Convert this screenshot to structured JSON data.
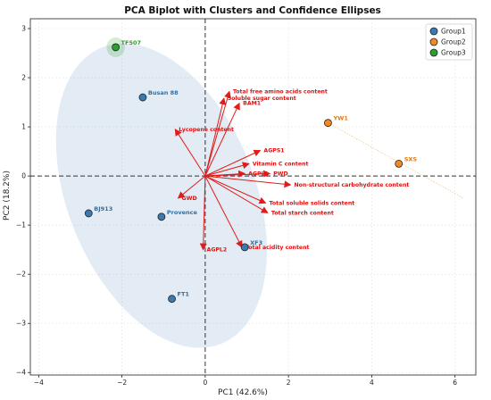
{
  "chart_data": {
    "type": "scatter",
    "title": "PCA Biplot with Clusters and Confidence Ellipses",
    "xlabel": "PC1 (42.6%)",
    "ylabel": "PC2 (18.2%)",
    "xlim": [
      -4.2,
      6.5
    ],
    "ylim": [
      -4.05,
      3.2
    ],
    "xticks": [
      -4,
      -2,
      0,
      2,
      4,
      6
    ],
    "yticks": [
      -4,
      -3,
      -2,
      -1,
      0,
      1,
      2,
      3
    ],
    "grid": true,
    "legend_position": "top-right",
    "groups": [
      {
        "name": "Group1",
        "color": "#3a7ab0",
        "label_color": "#2f6fa6"
      },
      {
        "name": "Group2",
        "color": "#f08a24",
        "label_color": "#e07a10"
      },
      {
        "name": "Group3",
        "color": "#2ca02c",
        "label_color": "#2ca02c"
      }
    ],
    "points": [
      {
        "label": "TF507",
        "x": -2.15,
        "y": 2.62,
        "group": 2
      },
      {
        "label": "Busan 88",
        "x": -1.5,
        "y": 1.6,
        "group": 0
      },
      {
        "label": "YW1",
        "x": 2.95,
        "y": 1.08,
        "group": 1
      },
      {
        "label": "SXS",
        "x": 4.65,
        "y": 0.25,
        "group": 1
      },
      {
        "label": "BJ913",
        "x": -2.8,
        "y": -0.76,
        "group": 0
      },
      {
        "label": "Provence",
        "x": -1.05,
        "y": -0.83,
        "group": 0
      },
      {
        "label": "XF3",
        "x": 0.95,
        "y": -1.45,
        "group": 0
      },
      {
        "label": "FT1",
        "x": -0.8,
        "y": -2.5,
        "group": 0
      }
    ],
    "loadings": [
      {
        "label": "Total free amino acids content",
        "x": 0.58,
        "y": 1.72
      },
      {
        "label": "Soluble sugar content",
        "x": 0.45,
        "y": 1.58
      },
      {
        "label": "BAM1",
        "x": 0.82,
        "y": 1.48
      },
      {
        "label": "Lycopene content",
        "x": -0.72,
        "y": 0.95
      },
      {
        "label": "AGPS1",
        "x": 1.32,
        "y": 0.52
      },
      {
        "label": "Vitamin C content",
        "x": 1.05,
        "y": 0.25
      },
      {
        "label": "AGPL1",
        "x": 0.95,
        "y": 0.05
      },
      {
        "label": "PWD",
        "x": 1.55,
        "y": 0.05
      },
      {
        "label": "Non-structural carbohydrate content",
        "x": 2.05,
        "y": -0.18
      },
      {
        "label": "Total soluble solids content",
        "x": 1.45,
        "y": -0.55
      },
      {
        "label": "Total starch content",
        "x": 1.5,
        "y": -0.75
      },
      {
        "label": "GWD",
        "x": -0.65,
        "y": -0.45
      },
      {
        "label": "AGPL2",
        "x": -0.05,
        "y": -1.5
      },
      {
        "label": "Total acidity content",
        "x": 0.88,
        "y": -1.45
      }
    ],
    "ellipses": [
      {
        "group": 0,
        "cx": -1.05,
        "cy": -0.4,
        "rx": 2.25,
        "ry": 3.25,
        "angle_deg": 22
      },
      {
        "group": 2,
        "cx": -2.15,
        "cy": 2.62,
        "rx": 0.22,
        "ry": 0.2,
        "angle_deg": 0
      }
    ],
    "group2_line": [
      {
        "x": 2.95,
        "y": 1.08
      },
      {
        "x": 6.2,
        "y": -0.45
      }
    ]
  }
}
